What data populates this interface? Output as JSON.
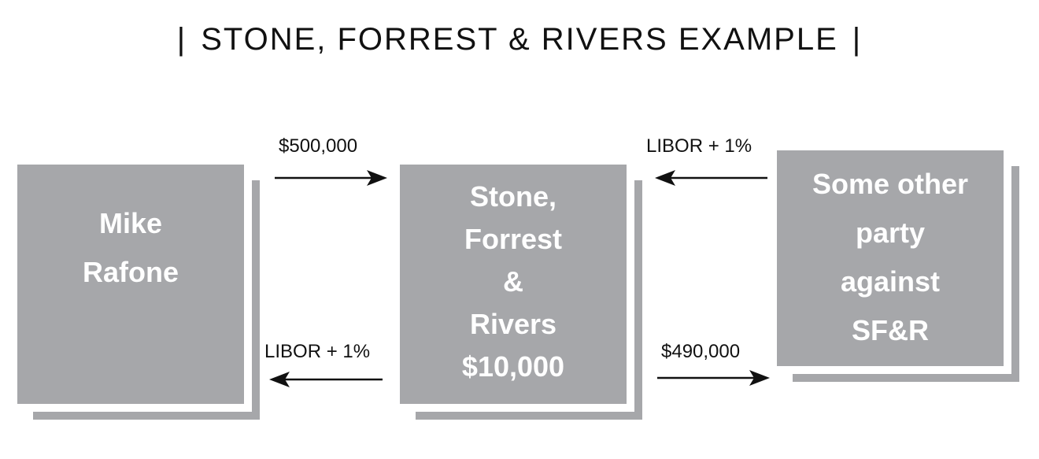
{
  "title": "STONE, FORREST & RIVERS EXAMPLE",
  "title_separator": "|",
  "boxes": {
    "mike": {
      "lines": [
        "Mike",
        "Rafone"
      ]
    },
    "sfr": {
      "lines": [
        "Stone,",
        "Forrest",
        "&",
        "Rivers",
        "$10,000"
      ]
    },
    "other": {
      "lines": [
        "Some other",
        "party",
        "against",
        "SF&R"
      ]
    }
  },
  "flows": {
    "mike_to_sfr": "$500,000",
    "sfr_to_mike": "LIBOR + 1%",
    "other_to_sfr": "LIBOR + 1%",
    "sfr_to_other": "$490,000"
  },
  "colors": {
    "box": "#a6a7aa",
    "box_text": "#ffffff",
    "arrow": "#111111"
  }
}
